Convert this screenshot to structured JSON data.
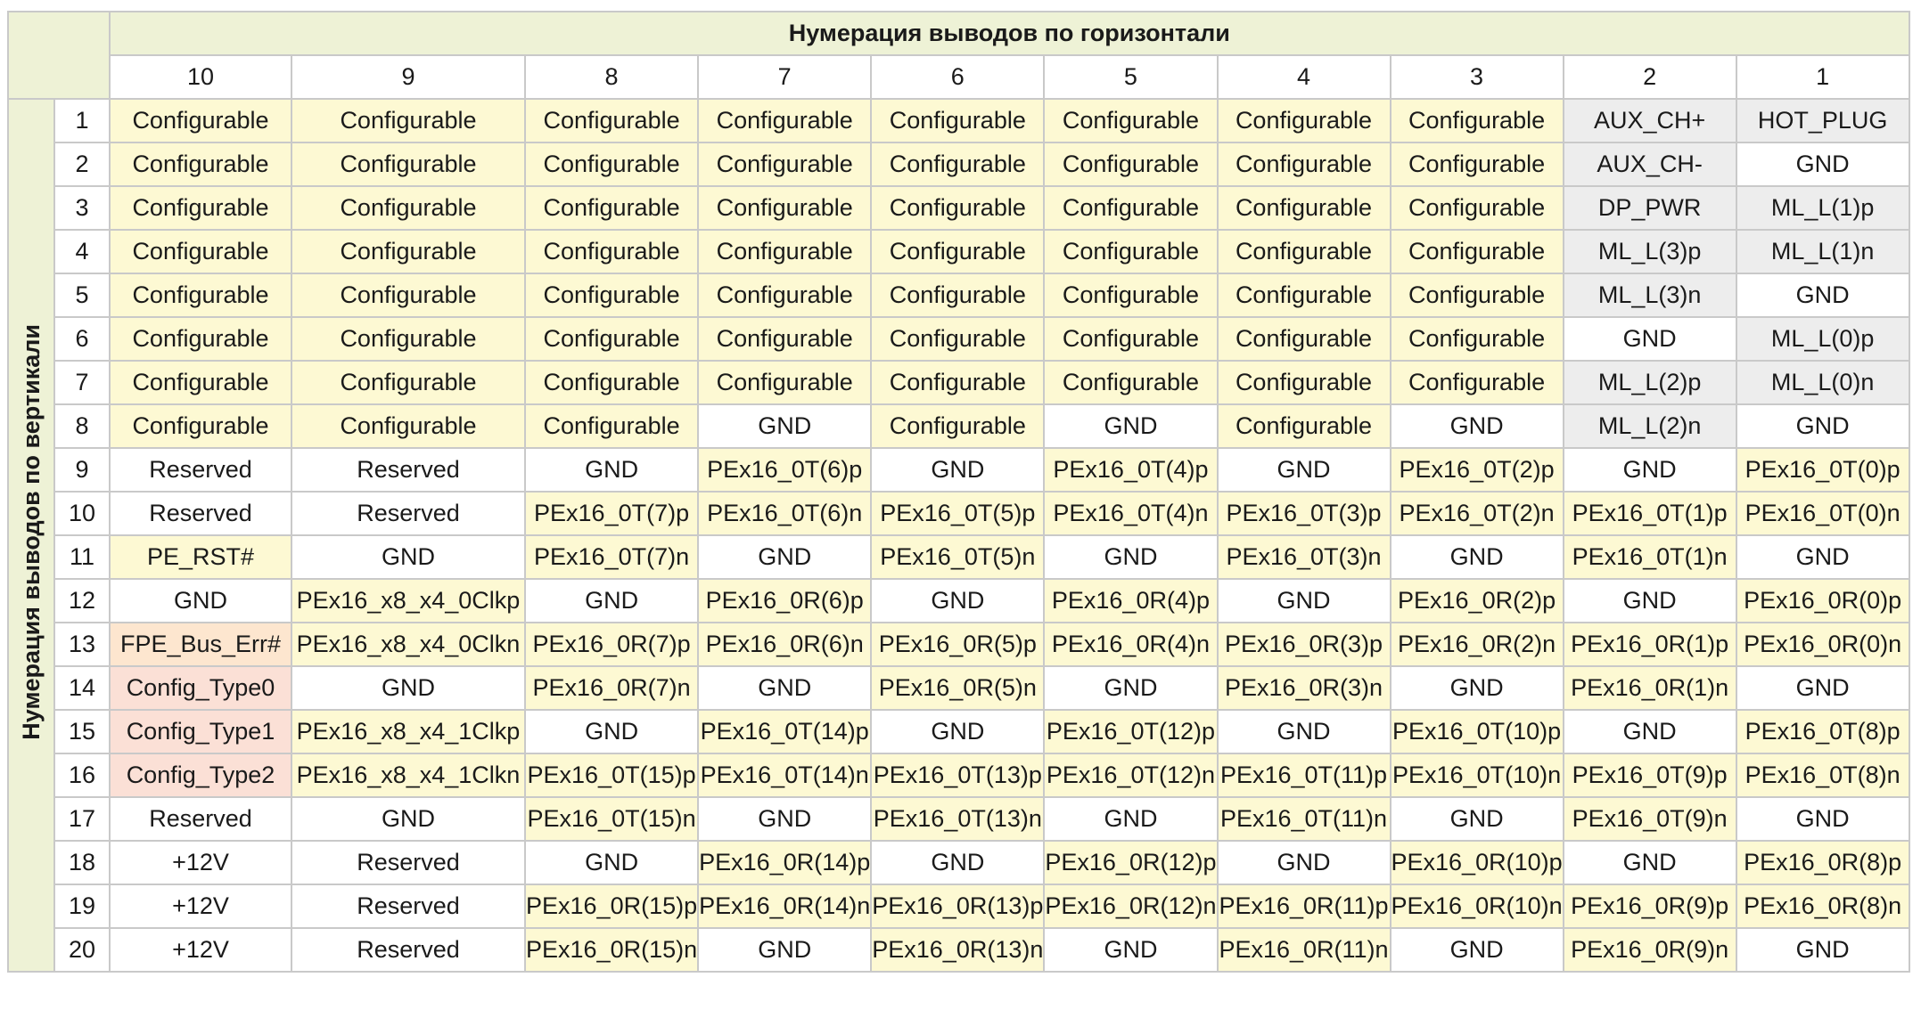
{
  "header": {
    "horizontal_title": "Нумерация выводов по горизонтали",
    "vertical_title": "Нумерация выводов по вертикали",
    "column_numbers": [
      "10",
      "9",
      "8",
      "7",
      "6",
      "5",
      "4",
      "3",
      "2",
      "1"
    ]
  },
  "legend_colors": {
    "yellow": "#fdf9d3",
    "gray": "#ededed",
    "orange": "#fde6cf",
    "pink": "#fbe0d6",
    "white": "#ffffff",
    "header_green": "#eef2d6"
  },
  "rows": [
    {
      "num": "1",
      "cells": [
        {
          "text": "Configurable",
          "color": "yellow"
        },
        {
          "text": "Configurable",
          "color": "yellow"
        },
        {
          "text": "Configurable",
          "color": "yellow"
        },
        {
          "text": "Configurable",
          "color": "yellow"
        },
        {
          "text": "Configurable",
          "color": "yellow"
        },
        {
          "text": "Configurable",
          "color": "yellow"
        },
        {
          "text": "Configurable",
          "color": "yellow"
        },
        {
          "text": "Configurable",
          "color": "yellow"
        },
        {
          "text": "AUX_CH+",
          "color": "gray"
        },
        {
          "text": "HOT_PLUG",
          "color": "gray"
        }
      ]
    },
    {
      "num": "2",
      "cells": [
        {
          "text": "Configurable",
          "color": "yellow"
        },
        {
          "text": "Configurable",
          "color": "yellow"
        },
        {
          "text": "Configurable",
          "color": "yellow"
        },
        {
          "text": "Configurable",
          "color": "yellow"
        },
        {
          "text": "Configurable",
          "color": "yellow"
        },
        {
          "text": "Configurable",
          "color": "yellow"
        },
        {
          "text": "Configurable",
          "color": "yellow"
        },
        {
          "text": "Configurable",
          "color": "yellow"
        },
        {
          "text": "AUX_CH-",
          "color": "gray"
        },
        {
          "text": "GND",
          "color": "white"
        }
      ]
    },
    {
      "num": "3",
      "cells": [
        {
          "text": "Configurable",
          "color": "yellow"
        },
        {
          "text": "Configurable",
          "color": "yellow"
        },
        {
          "text": "Configurable",
          "color": "yellow"
        },
        {
          "text": "Configurable",
          "color": "yellow"
        },
        {
          "text": "Configurable",
          "color": "yellow"
        },
        {
          "text": "Configurable",
          "color": "yellow"
        },
        {
          "text": "Configurable",
          "color": "yellow"
        },
        {
          "text": "Configurable",
          "color": "yellow"
        },
        {
          "text": "DP_PWR",
          "color": "gray"
        },
        {
          "text": "ML_L(1)p",
          "color": "gray"
        }
      ]
    },
    {
      "num": "4",
      "cells": [
        {
          "text": "Configurable",
          "color": "yellow"
        },
        {
          "text": "Configurable",
          "color": "yellow"
        },
        {
          "text": "Configurable",
          "color": "yellow"
        },
        {
          "text": "Configurable",
          "color": "yellow"
        },
        {
          "text": "Configurable",
          "color": "yellow"
        },
        {
          "text": "Configurable",
          "color": "yellow"
        },
        {
          "text": "Configurable",
          "color": "yellow"
        },
        {
          "text": "Configurable",
          "color": "yellow"
        },
        {
          "text": "ML_L(3)p",
          "color": "gray"
        },
        {
          "text": "ML_L(1)n",
          "color": "gray"
        }
      ]
    },
    {
      "num": "5",
      "cells": [
        {
          "text": "Configurable",
          "color": "yellow"
        },
        {
          "text": "Configurable",
          "color": "yellow"
        },
        {
          "text": "Configurable",
          "color": "yellow"
        },
        {
          "text": "Configurable",
          "color": "yellow"
        },
        {
          "text": "Configurable",
          "color": "yellow"
        },
        {
          "text": "Configurable",
          "color": "yellow"
        },
        {
          "text": "Configurable",
          "color": "yellow"
        },
        {
          "text": "Configurable",
          "color": "yellow"
        },
        {
          "text": "ML_L(3)n",
          "color": "gray"
        },
        {
          "text": "GND",
          "color": "white"
        }
      ]
    },
    {
      "num": "6",
      "cells": [
        {
          "text": "Configurable",
          "color": "yellow"
        },
        {
          "text": "Configurable",
          "color": "yellow"
        },
        {
          "text": "Configurable",
          "color": "yellow"
        },
        {
          "text": "Configurable",
          "color": "yellow"
        },
        {
          "text": "Configurable",
          "color": "yellow"
        },
        {
          "text": "Configurable",
          "color": "yellow"
        },
        {
          "text": "Configurable",
          "color": "yellow"
        },
        {
          "text": "Configurable",
          "color": "yellow"
        },
        {
          "text": "GND",
          "color": "white"
        },
        {
          "text": "ML_L(0)p",
          "color": "gray"
        }
      ]
    },
    {
      "num": "7",
      "cells": [
        {
          "text": "Configurable",
          "color": "yellow"
        },
        {
          "text": "Configurable",
          "color": "yellow"
        },
        {
          "text": "Configurable",
          "color": "yellow"
        },
        {
          "text": "Configurable",
          "color": "yellow"
        },
        {
          "text": "Configurable",
          "color": "yellow"
        },
        {
          "text": "Configurable",
          "color": "yellow"
        },
        {
          "text": "Configurable",
          "color": "yellow"
        },
        {
          "text": "Configurable",
          "color": "yellow"
        },
        {
          "text": "ML_L(2)p",
          "color": "gray"
        },
        {
          "text": "ML_L(0)n",
          "color": "gray"
        }
      ]
    },
    {
      "num": "8",
      "cells": [
        {
          "text": "Configurable",
          "color": "yellow"
        },
        {
          "text": "Configurable",
          "color": "yellow"
        },
        {
          "text": "Configurable",
          "color": "yellow"
        },
        {
          "text": "GND",
          "color": "white"
        },
        {
          "text": "Configurable",
          "color": "yellow"
        },
        {
          "text": "GND",
          "color": "white"
        },
        {
          "text": "Configurable",
          "color": "yellow"
        },
        {
          "text": "GND",
          "color": "white"
        },
        {
          "text": "ML_L(2)n",
          "color": "gray"
        },
        {
          "text": "GND",
          "color": "white"
        }
      ]
    },
    {
      "num": "9",
      "cells": [
        {
          "text": "Reserved",
          "color": "white"
        },
        {
          "text": "Reserved",
          "color": "white"
        },
        {
          "text": "GND",
          "color": "white"
        },
        {
          "text": "PEx16_0T(6)p",
          "color": "yellow"
        },
        {
          "text": "GND",
          "color": "white"
        },
        {
          "text": "PEx16_0T(4)p",
          "color": "yellow"
        },
        {
          "text": "GND",
          "color": "white"
        },
        {
          "text": "PEx16_0T(2)p",
          "color": "yellow"
        },
        {
          "text": "GND",
          "color": "white"
        },
        {
          "text": "PEx16_0T(0)p",
          "color": "yellow"
        }
      ]
    },
    {
      "num": "10",
      "cells": [
        {
          "text": "Reserved",
          "color": "white"
        },
        {
          "text": "Reserved",
          "color": "white"
        },
        {
          "text": "PEx16_0T(7)p",
          "color": "yellow"
        },
        {
          "text": "PEx16_0T(6)n",
          "color": "yellow"
        },
        {
          "text": "PEx16_0T(5)p",
          "color": "yellow"
        },
        {
          "text": "PEx16_0T(4)n",
          "color": "yellow"
        },
        {
          "text": "PEx16_0T(3)p",
          "color": "yellow"
        },
        {
          "text": "PEx16_0T(2)n",
          "color": "yellow"
        },
        {
          "text": "PEx16_0T(1)p",
          "color": "yellow"
        },
        {
          "text": "PEx16_0T(0)n",
          "color": "yellow"
        }
      ]
    },
    {
      "num": "11",
      "cells": [
        {
          "text": "PE_RST#",
          "color": "yellow"
        },
        {
          "text": "GND",
          "color": "white"
        },
        {
          "text": "PEx16_0T(7)n",
          "color": "yellow"
        },
        {
          "text": "GND",
          "color": "white"
        },
        {
          "text": "PEx16_0T(5)n",
          "color": "yellow"
        },
        {
          "text": "GND",
          "color": "white"
        },
        {
          "text": "PEx16_0T(3)n",
          "color": "yellow"
        },
        {
          "text": "GND",
          "color": "white"
        },
        {
          "text": "PEx16_0T(1)n",
          "color": "yellow"
        },
        {
          "text": "GND",
          "color": "white"
        }
      ]
    },
    {
      "num": "12",
      "cells": [
        {
          "text": "GND",
          "color": "white"
        },
        {
          "text": "PEx16_x8_x4_0Clkp",
          "color": "yellow"
        },
        {
          "text": "GND",
          "color": "white"
        },
        {
          "text": "PEx16_0R(6)p",
          "color": "yellow"
        },
        {
          "text": "GND",
          "color": "white"
        },
        {
          "text": "PEx16_0R(4)p",
          "color": "yellow"
        },
        {
          "text": "GND",
          "color": "white"
        },
        {
          "text": "PEx16_0R(2)p",
          "color": "yellow"
        },
        {
          "text": "GND",
          "color": "white"
        },
        {
          "text": "PEx16_0R(0)p",
          "color": "yellow"
        }
      ]
    },
    {
      "num": "13",
      "cells": [
        {
          "text": "FPE_Bus_Err#",
          "color": "orange"
        },
        {
          "text": "PEx16_x8_x4_0Clkn",
          "color": "yellow"
        },
        {
          "text": "PEx16_0R(7)p",
          "color": "yellow"
        },
        {
          "text": "PEx16_0R(6)n",
          "color": "yellow"
        },
        {
          "text": "PEx16_0R(5)p",
          "color": "yellow"
        },
        {
          "text": "PEx16_0R(4)n",
          "color": "yellow"
        },
        {
          "text": "PEx16_0R(3)p",
          "color": "yellow"
        },
        {
          "text": "PEx16_0R(2)n",
          "color": "yellow"
        },
        {
          "text": "PEx16_0R(1)p",
          "color": "yellow"
        },
        {
          "text": "PEx16_0R(0)n",
          "color": "yellow"
        }
      ]
    },
    {
      "num": "14",
      "cells": [
        {
          "text": "Config_Type0",
          "color": "pink"
        },
        {
          "text": "GND",
          "color": "white"
        },
        {
          "text": "PEx16_0R(7)n",
          "color": "yellow"
        },
        {
          "text": "GND",
          "color": "white"
        },
        {
          "text": "PEx16_0R(5)n",
          "color": "yellow"
        },
        {
          "text": "GND",
          "color": "white"
        },
        {
          "text": "PEx16_0R(3)n",
          "color": "yellow"
        },
        {
          "text": "GND",
          "color": "white"
        },
        {
          "text": "PEx16_0R(1)n",
          "color": "yellow"
        },
        {
          "text": "GND",
          "color": "white"
        }
      ]
    },
    {
      "num": "15",
      "cells": [
        {
          "text": "Config_Type1",
          "color": "pink"
        },
        {
          "text": "PEx16_x8_x4_1Clkp",
          "color": "yellow"
        },
        {
          "text": "GND",
          "color": "white"
        },
        {
          "text": "PEx16_0T(14)p",
          "color": "yellow"
        },
        {
          "text": "GND",
          "color": "white"
        },
        {
          "text": "PEx16_0T(12)p",
          "color": "yellow"
        },
        {
          "text": "GND",
          "color": "white"
        },
        {
          "text": "PEx16_0T(10)p",
          "color": "yellow"
        },
        {
          "text": "GND",
          "color": "white"
        },
        {
          "text": "PEx16_0T(8)p",
          "color": "yellow"
        }
      ]
    },
    {
      "num": "16",
      "cells": [
        {
          "text": "Config_Type2",
          "color": "pink"
        },
        {
          "text": "PEx16_x8_x4_1Clkn",
          "color": "yellow"
        },
        {
          "text": "PEx16_0T(15)p",
          "color": "yellow"
        },
        {
          "text": "PEx16_0T(14)n",
          "color": "yellow"
        },
        {
          "text": "PEx16_0T(13)p",
          "color": "yellow"
        },
        {
          "text": "PEx16_0T(12)n",
          "color": "yellow"
        },
        {
          "text": "PEx16_0T(11)p",
          "color": "yellow"
        },
        {
          "text": "PEx16_0T(10)n",
          "color": "yellow"
        },
        {
          "text": "PEx16_0T(9)p",
          "color": "yellow"
        },
        {
          "text": "PEx16_0T(8)n",
          "color": "yellow"
        }
      ]
    },
    {
      "num": "17",
      "cells": [
        {
          "text": "Reserved",
          "color": "white"
        },
        {
          "text": "GND",
          "color": "white"
        },
        {
          "text": "PEx16_0T(15)n",
          "color": "yellow"
        },
        {
          "text": "GND",
          "color": "white"
        },
        {
          "text": "PEx16_0T(13)n",
          "color": "yellow"
        },
        {
          "text": "GND",
          "color": "white"
        },
        {
          "text": "PEx16_0T(11)n",
          "color": "yellow"
        },
        {
          "text": "GND",
          "color": "white"
        },
        {
          "text": "PEx16_0T(9)n",
          "color": "yellow"
        },
        {
          "text": "GND",
          "color": "white"
        }
      ]
    },
    {
      "num": "18",
      "cells": [
        {
          "text": "+12V",
          "color": "white"
        },
        {
          "text": "Reserved",
          "color": "white"
        },
        {
          "text": "GND",
          "color": "white"
        },
        {
          "text": "PEx16_0R(14)p",
          "color": "yellow"
        },
        {
          "text": "GND",
          "color": "white"
        },
        {
          "text": "PEx16_0R(12)p",
          "color": "yellow"
        },
        {
          "text": "GND",
          "color": "white"
        },
        {
          "text": "PEx16_0R(10)p",
          "color": "yellow"
        },
        {
          "text": "GND",
          "color": "white"
        },
        {
          "text": "PEx16_0R(8)p",
          "color": "yellow"
        }
      ]
    },
    {
      "num": "19",
      "cells": [
        {
          "text": "+12V",
          "color": "white"
        },
        {
          "text": "Reserved",
          "color": "white"
        },
        {
          "text": "PEx16_0R(15)p",
          "color": "yellow"
        },
        {
          "text": "PEx16_0R(14)n",
          "color": "yellow"
        },
        {
          "text": "PEx16_0R(13)p",
          "color": "yellow"
        },
        {
          "text": "PEx16_0R(12)n",
          "color": "yellow"
        },
        {
          "text": "PEx16_0R(11)p",
          "color": "yellow"
        },
        {
          "text": "PEx16_0R(10)n",
          "color": "yellow"
        },
        {
          "text": "PEx16_0R(9)p",
          "color": "yellow"
        },
        {
          "text": "PEx16_0R(8)n",
          "color": "yellow"
        }
      ]
    },
    {
      "num": "20",
      "cells": [
        {
          "text": "+12V",
          "color": "white"
        },
        {
          "text": "Reserved",
          "color": "white"
        },
        {
          "text": "PEx16_0R(15)n",
          "color": "yellow"
        },
        {
          "text": "GND",
          "color": "white"
        },
        {
          "text": "PEx16_0R(13)n",
          "color": "yellow"
        },
        {
          "text": "GND",
          "color": "white"
        },
        {
          "text": "PEx16_0R(11)n",
          "color": "yellow"
        },
        {
          "text": "GND",
          "color": "white"
        },
        {
          "text": "PEx16_0R(9)n",
          "color": "yellow"
        },
        {
          "text": "GND",
          "color": "white"
        }
      ]
    }
  ]
}
